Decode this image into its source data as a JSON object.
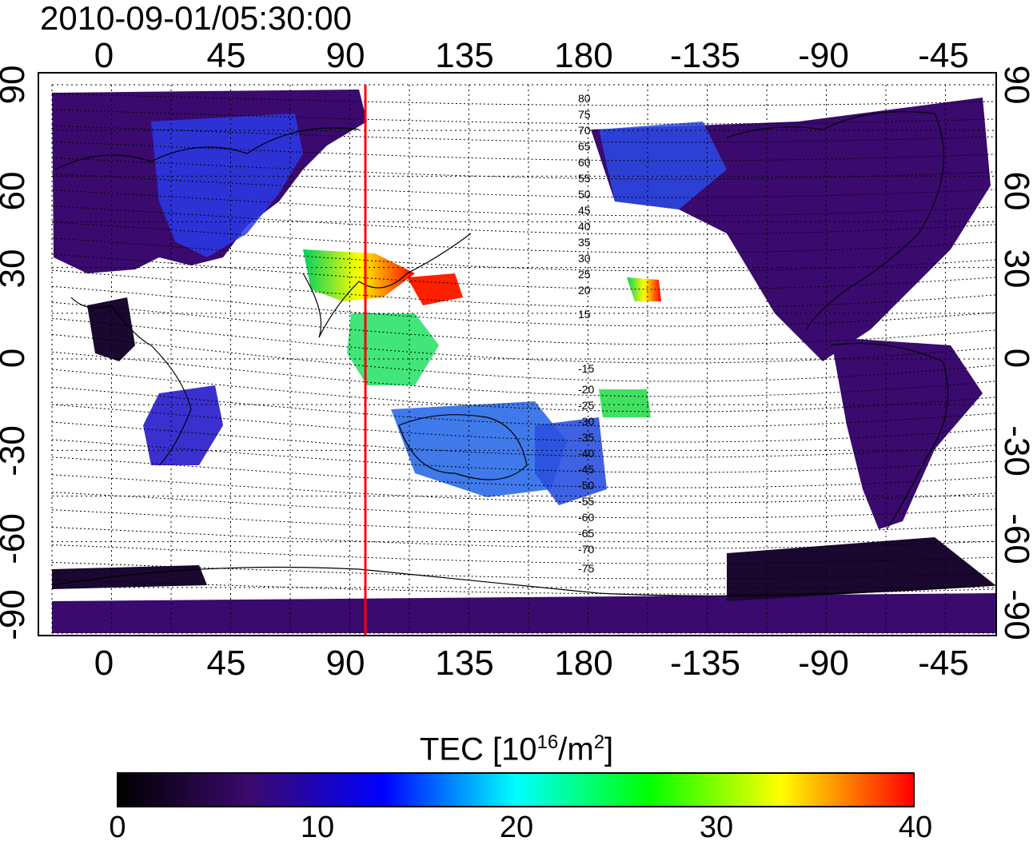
{
  "header": {
    "timestamp": "2010-09-01/05:30:00"
  },
  "axes": {
    "longitude_ticks_top": [
      "0",
      "45",
      "90",
      "135",
      "180",
      "-135",
      "-90",
      "-45"
    ],
    "longitude_ticks_bottom": [
      "0",
      "45",
      "90",
      "135",
      "180",
      "-135",
      "-90",
      "-45"
    ],
    "latitude_ticks_left": [
      "90",
      "60",
      "30",
      "0",
      "-30",
      "-60",
      "-90"
    ],
    "latitude_ticks_right": [
      "90",
      "60",
      "30",
      "0",
      "-30",
      "-60",
      "-90"
    ]
  },
  "map": {
    "projection": "equirectangular",
    "grid": "dotted",
    "meridian_marker_longitude": 97,
    "meridian_marker_color": "#ff0000",
    "magnetic_contour_labels": [
      "80",
      "75",
      "70",
      "65",
      "60",
      "55",
      "50",
      "45",
      "40",
      "35",
      "30",
      "25",
      "20",
      "15",
      "-15",
      "-20",
      "-25",
      "-30",
      "-35",
      "-40",
      "-45",
      "-50",
      "-55",
      "-60",
      "-65",
      "-70",
      "-75"
    ]
  },
  "colorbar": {
    "title_main": "TEC  [10",
    "title_exp": "16",
    "title_unit": "/m",
    "title_unit_exp": "2",
    "title_end": "]",
    "ticks": [
      "0",
      "10",
      "20",
      "30",
      "40"
    ],
    "range": [
      0,
      40
    ],
    "colormap": [
      "#000000",
      "#3a0a6e",
      "#0000ff",
      "#00ffff",
      "#00ff00",
      "#ffff00",
      "#ff0000"
    ]
  }
}
